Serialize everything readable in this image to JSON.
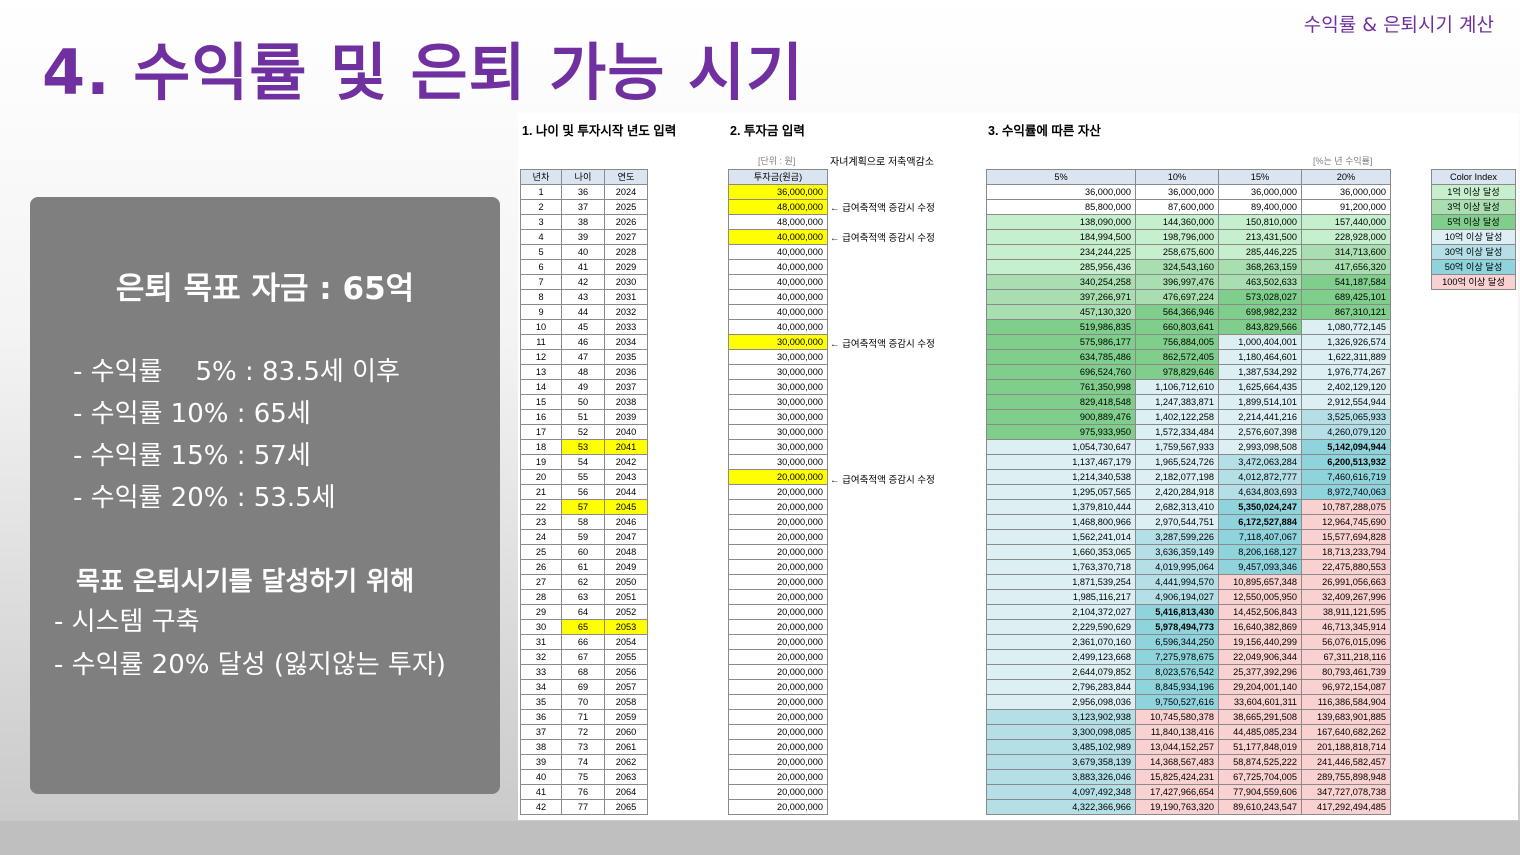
{
  "header": {
    "title": "4. 수익률 및 은퇴 가능 시기",
    "top_right": "수익률 & 은퇴시기 계산"
  },
  "panel": {
    "goal": "은퇴 목표 자금 : 65억",
    "rates": [
      "- 수익률    5% : 83.5세 이후",
      "- 수익률 10% : 65세",
      "- 수익률 15% : 57세",
      "- 수익률 20% : 53.5세"
    ],
    "subhead": "목표 은퇴시기를 달성하기 위해",
    "todo": [
      "- 시스템 구축",
      "- 수익률 20% 달성 (잃지않는 투자)"
    ]
  },
  "sheet": {
    "sec1": "1. 나이 및 투자시작 년도 입력",
    "sec2": "2. 투자금 입력",
    "sec3": "3. 수익률에 따른 자산",
    "unit": "[단위 : 원]",
    "plan_note": "자녀계획으로 저축액감소",
    "rate_note": "[%는 년 수익률]",
    "h_year": "년차",
    "h_age": "나이",
    "h_yr": "연도",
    "h_invest": "투자금(원금)",
    "h_rates": [
      "5%",
      "10%",
      "15%",
      "20%"
    ],
    "ci_title": "Color Index",
    "ci": [
      "1억 이상 달성",
      "3억 이상 달성",
      "5억 이상 달성",
      "10억 이상 달성",
      "30억 이상 달성",
      "50억 이상 달성",
      "100억 이상 달성"
    ],
    "ci_colors": [
      "#c6efce",
      "#a9dfb0",
      "#7fce8c",
      "#dceff3",
      "#b4dfe7",
      "#8fd3dc",
      "#f9d1d1"
    ],
    "note_text": "← 급여축적액 증감시 수정",
    "rows": [
      [
        1,
        36,
        2024,
        "36,000,000",
        "36,000,000",
        "36,000,000",
        "36,000,000",
        "36,000,000"
      ],
      [
        2,
        37,
        2025,
        "48,000,000",
        "85,800,000",
        "87,600,000",
        "89,400,000",
        "91,200,000"
      ],
      [
        3,
        38,
        2026,
        "48,000,000",
        "138,090,000",
        "144,360,000",
        "150,810,000",
        "157,440,000"
      ],
      [
        4,
        39,
        2027,
        "40,000,000",
        "184,994,500",
        "198,796,000",
        "213,431,500",
        "228,928,000"
      ],
      [
        5,
        40,
        2028,
        "40,000,000",
        "234,244,225",
        "258,675,600",
        "285,446,225",
        "314,713,600"
      ],
      [
        6,
        41,
        2029,
        "40,000,000",
        "285,956,436",
        "324,543,160",
        "368,263,159",
        "417,656,320"
      ],
      [
        7,
        42,
        2030,
        "40,000,000",
        "340,254,258",
        "396,997,476",
        "463,502,633",
        "541,187,584"
      ],
      [
        8,
        43,
        2031,
        "40,000,000",
        "397,266,971",
        "476,697,224",
        "573,028,027",
        "689,425,101"
      ],
      [
        9,
        44,
        2032,
        "40,000,000",
        "457,130,320",
        "564,366,946",
        "698,982,232",
        "867,310,121"
      ],
      [
        10,
        45,
        2033,
        "40,000,000",
        "519,986,835",
        "660,803,641",
        "843,829,566",
        "1,080,772,145"
      ],
      [
        11,
        46,
        2034,
        "30,000,000",
        "575,986,177",
        "756,884,005",
        "1,000,404,001",
        "1,326,926,574"
      ],
      [
        12,
        47,
        2035,
        "30,000,000",
        "634,785,486",
        "862,572,405",
        "1,180,464,601",
        "1,622,311,889"
      ],
      [
        13,
        48,
        2036,
        "30,000,000",
        "696,524,760",
        "978,829,646",
        "1,387,534,292",
        "1,976,774,267"
      ],
      [
        14,
        49,
        2037,
        "30,000,000",
        "761,350,998",
        "1,106,712,610",
        "1,625,664,435",
        "2,402,129,120"
      ],
      [
        15,
        50,
        2038,
        "30,000,000",
        "829,418,548",
        "1,247,383,871",
        "1,899,514,101",
        "2,912,554,944"
      ],
      [
        16,
        51,
        2039,
        "30,000,000",
        "900,889,476",
        "1,402,122,258",
        "2,214,441,216",
        "3,525,065,933"
      ],
      [
        17,
        52,
        2040,
        "30,000,000",
        "975,933,950",
        "1,572,334,484",
        "2,576,607,398",
        "4,260,079,120"
      ],
      [
        18,
        53,
        2041,
        "30,000,000",
        "1,054,730,647",
        "1,759,567,933",
        "2,993,098,508",
        "5,142,094,944"
      ],
      [
        19,
        54,
        2042,
        "30,000,000",
        "1,137,467,179",
        "1,965,524,726",
        "3,472,063,284",
        "6,200,513,932"
      ],
      [
        20,
        55,
        2043,
        "20,000,000",
        "1,214,340,538",
        "2,182,077,198",
        "4,012,872,777",
        "7,460,616,719"
      ],
      [
        21,
        56,
        2044,
        "20,000,000",
        "1,295,057,565",
        "2,420,284,918",
        "4,634,803,693",
        "8,972,740,063"
      ],
      [
        22,
        57,
        2045,
        "20,000,000",
        "1,379,810,444",
        "2,682,313,410",
        "5,350,024,247",
        "10,787,288,075"
      ],
      [
        23,
        58,
        2046,
        "20,000,000",
        "1,468,800,966",
        "2,970,544,751",
        "6,172,527,884",
        "12,964,745,690"
      ],
      [
        24,
        59,
        2047,
        "20,000,000",
        "1,562,241,014",
        "3,287,599,226",
        "7,118,407,067",
        "15,577,694,828"
      ],
      [
        25,
        60,
        2048,
        "20,000,000",
        "1,660,353,065",
        "3,636,359,149",
        "8,206,168,127",
        "18,713,233,794"
      ],
      [
        26,
        61,
        2049,
        "20,000,000",
        "1,763,370,718",
        "4,019,995,064",
        "9,457,093,346",
        "22,475,880,553"
      ],
      [
        27,
        62,
        2050,
        "20,000,000",
        "1,871,539,254",
        "4,441,994,570",
        "10,895,657,348",
        "26,991,056,663"
      ],
      [
        28,
        63,
        2051,
        "20,000,000",
        "1,985,116,217",
        "4,906,194,027",
        "12,550,005,950",
        "32,409,267,996"
      ],
      [
        29,
        64,
        2052,
        "20,000,000",
        "2,104,372,027",
        "5,416,813,430",
        "14,452,506,843",
        "38,911,121,595"
      ],
      [
        30,
        65,
        2053,
        "20,000,000",
        "2,229,590,629",
        "5,978,494,773",
        "16,640,382,869",
        "46,713,345,914"
      ],
      [
        31,
        66,
        2054,
        "20,000,000",
        "2,361,070,160",
        "6,596,344,250",
        "19,156,440,299",
        "56,076,015,096"
      ],
      [
        32,
        67,
        2055,
        "20,000,000",
        "2,499,123,668",
        "7,275,978,675",
        "22,049,906,344",
        "67,311,218,116"
      ],
      [
        33,
        68,
        2056,
        "20,000,000",
        "2,644,079,852",
        "8,023,576,542",
        "25,377,392,296",
        "80,793,461,739"
      ],
      [
        34,
        69,
        2057,
        "20,000,000",
        "2,796,283,844",
        "8,845,934,196",
        "29,204,001,140",
        "96,972,154,087"
      ],
      [
        35,
        70,
        2058,
        "20,000,000",
        "2,956,098,036",
        "9,750,527,616",
        "33,604,601,311",
        "116,386,584,904"
      ],
      [
        36,
        71,
        2059,
        "20,000,000",
        "3,123,902,938",
        "10,745,580,378",
        "38,665,291,508",
        "139,683,901,885"
      ],
      [
        37,
        72,
        2060,
        "20,000,000",
        "3,300,098,085",
        "11,840,138,416",
        "44,485,085,234",
        "167,640,682,262"
      ],
      [
        38,
        73,
        2061,
        "20,000,000",
        "3,485,102,989",
        "13,044,152,257",
        "51,177,848,019",
        "201,188,818,714"
      ],
      [
        39,
        74,
        2062,
        "20,000,000",
        "3,679,358,139",
        "14,368,567,483",
        "58,874,525,222",
        "241,446,582,457"
      ],
      [
        40,
        75,
        2063,
        "20,000,000",
        "3,883,326,046",
        "15,825,424,231",
        "67,725,704,005",
        "289,755,898,948"
      ],
      [
        41,
        76,
        2064,
        "20,000,000",
        "4,097,492,348",
        "17,427,966,654",
        "77,904,559,606",
        "347,727,078,738"
      ],
      [
        42,
        77,
        2065,
        "20,000,000",
        "4,322,366,966",
        "19,190,763,320",
        "89,610,243,547",
        "417,292,494,485"
      ]
    ]
  }
}
